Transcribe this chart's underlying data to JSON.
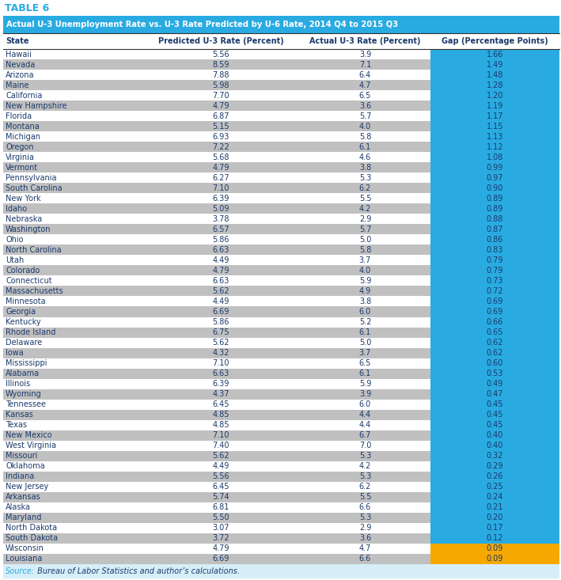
{
  "title_label": "TABLE 6",
  "subtitle": "Actual U-3 Unemployment Rate vs. U-3 Rate Predicted by U-6 Rate, 2014 Q4 to 2015 Q3",
  "col_headers": [
    "State",
    "Predicted U-3 Rate (Percent)",
    "Actual U-3 Rate (Percent)",
    "Gap (Percentage Points)"
  ],
  "rows": [
    [
      "Hawaii",
      "5.56",
      "3.9",
      "1.66"
    ],
    [
      "Nevada",
      "8.59",
      "7.1",
      "1.49"
    ],
    [
      "Arizona",
      "7.88",
      "6.4",
      "1.48"
    ],
    [
      "Maine",
      "5.98",
      "4.7",
      "1.28"
    ],
    [
      "California",
      "7.70",
      "6.5",
      "1.20"
    ],
    [
      "New Hampshire",
      "4.79",
      "3.6",
      "1.19"
    ],
    [
      "Florida",
      "6.87",
      "5.7",
      "1.17"
    ],
    [
      "Montana",
      "5.15",
      "4.0",
      "1.15"
    ],
    [
      "Michigan",
      "6.93",
      "5.8",
      "1.13"
    ],
    [
      "Oregon",
      "7.22",
      "6.1",
      "1.12"
    ],
    [
      "Virginia",
      "5.68",
      "4.6",
      "1.08"
    ],
    [
      "Vermont",
      "4.79",
      "3.8",
      "0.99"
    ],
    [
      "Pennsylvania",
      "6.27",
      "5.3",
      "0.97"
    ],
    [
      "South Carolina",
      "7.10",
      "6.2",
      "0.90"
    ],
    [
      "New York",
      "6.39",
      "5.5",
      "0.89"
    ],
    [
      "Idaho",
      "5.09",
      "4.2",
      "0.89"
    ],
    [
      "Nebraska",
      "3.78",
      "2.9",
      "0.88"
    ],
    [
      "Washington",
      "6.57",
      "5.7",
      "0.87"
    ],
    [
      "Ohio",
      "5.86",
      "5.0",
      "0.86"
    ],
    [
      "North Carolina",
      "6.63",
      "5.8",
      "0.83"
    ],
    [
      "Utah",
      "4.49",
      "3.7",
      "0.79"
    ],
    [
      "Colorado",
      "4.79",
      "4.0",
      "0.79"
    ],
    [
      "Connecticut",
      "6.63",
      "5.9",
      "0.73"
    ],
    [
      "Massachusetts",
      "5.62",
      "4.9",
      "0.72"
    ],
    [
      "Minnesota",
      "4.49",
      "3.8",
      "0.69"
    ],
    [
      "Georgia",
      "6.69",
      "6.0",
      "0.69"
    ],
    [
      "Kentucky",
      "5.86",
      "5.2",
      "0.66"
    ],
    [
      "Rhode Island",
      "6.75",
      "6.1",
      "0.65"
    ],
    [
      "Delaware",
      "5.62",
      "5.0",
      "0.62"
    ],
    [
      "Iowa",
      "4.32",
      "3.7",
      "0.62"
    ],
    [
      "Mississippi",
      "7.10",
      "6.5",
      "0.60"
    ],
    [
      "Alabama",
      "6.63",
      "6.1",
      "0.53"
    ],
    [
      "Illinois",
      "6.39",
      "5.9",
      "0.49"
    ],
    [
      "Wyoming",
      "4.37",
      "3.9",
      "0.47"
    ],
    [
      "Tennessee",
      "6.45",
      "6.0",
      "0.45"
    ],
    [
      "Kansas",
      "4.85",
      "4.4",
      "0.45"
    ],
    [
      "Texas",
      "4.85",
      "4.4",
      "0.45"
    ],
    [
      "New Mexico",
      "7.10",
      "6.7",
      "0.40"
    ],
    [
      "West Virginia",
      "7.40",
      "7.0",
      "0.40"
    ],
    [
      "Missouri",
      "5.62",
      "5.3",
      "0.32"
    ],
    [
      "Oklahoma",
      "4.49",
      "4.2",
      "0.29"
    ],
    [
      "Indiana",
      "5.56",
      "5.3",
      "0.26"
    ],
    [
      "New Jersey",
      "6.45",
      "6.2",
      "0.25"
    ],
    [
      "Arkansas",
      "5.74",
      "5.5",
      "0.24"
    ],
    [
      "Alaska",
      "6.81",
      "6.6",
      "0.21"
    ],
    [
      "Maryland",
      "5.50",
      "5.3",
      "0.20"
    ],
    [
      "North Dakota",
      "3.07",
      "2.9",
      "0.17"
    ],
    [
      "South Dakota",
      "3.72",
      "3.6",
      "0.12"
    ],
    [
      "Wisconsin",
      "4.79",
      "4.7",
      "0.09"
    ],
    [
      "Louisiana",
      "6.69",
      "6.6",
      "0.09"
    ]
  ],
  "source_text": "Source: Bureau of Labor Statistics and author’s calculations.",
  "header_bg": "#29ABE2",
  "row_alt_colors": [
    "#FFFFFF",
    "#C0C0C0"
  ],
  "gap_col_bg": "#29ABE2",
  "gap_col_bg_last2": "#F5A800",
  "text_color_dark": "#1B3A6B",
  "source_label_color": "#29ABE2",
  "title_color": "#29ABE2",
  "source_bg": "#D6EEF8"
}
